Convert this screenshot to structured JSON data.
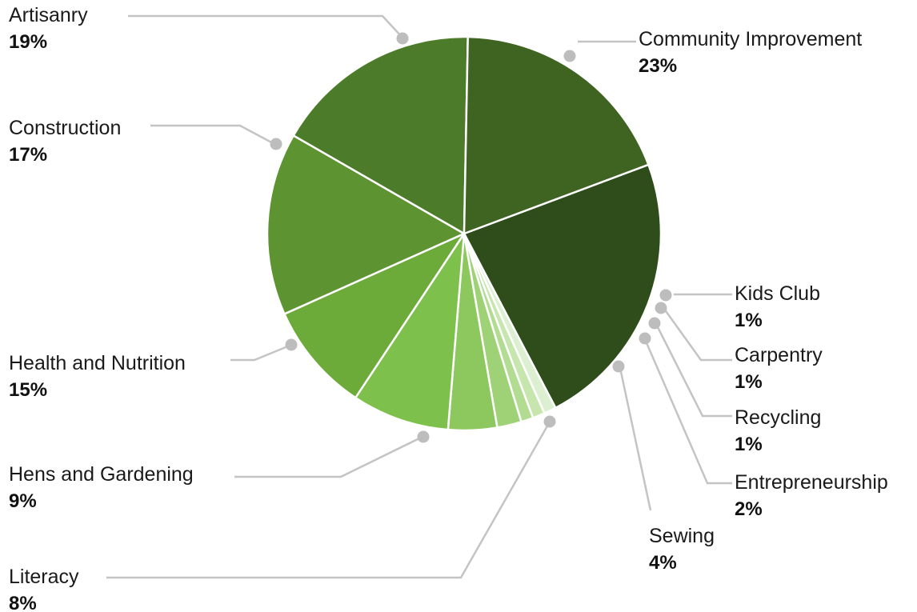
{
  "chart_data": {
    "type": "pie",
    "legend": "none",
    "slices": [
      {
        "label": "Community Improvement",
        "value": 23,
        "value_label": "23%",
        "color": "#2e4d1a"
      },
      {
        "label": "Kids Club",
        "value": 1,
        "value_label": "1%",
        "color": "#dcefd0"
      },
      {
        "label": "Carpentry",
        "value": 1,
        "value_label": "1%",
        "color": "#c6e6ae"
      },
      {
        "label": "Recycling",
        "value": 1,
        "value_label": "1%",
        "color": "#b2dc92"
      },
      {
        "label": "Entrepreneurship",
        "value": 2,
        "value_label": "2%",
        "color": "#9fd277"
      },
      {
        "label": "Sewing",
        "value": 4,
        "value_label": "4%",
        "color": "#8cc85e"
      },
      {
        "label": "Literacy",
        "value": 8,
        "value_label": "8%",
        "color": "#7dc04b"
      },
      {
        "label": "Hens and Gardening",
        "value": 9,
        "value_label": "9%",
        "color": "#6caa3a"
      },
      {
        "label": "Health and Nutrition",
        "value": 15,
        "value_label": "15%",
        "color": "#5d9431"
      },
      {
        "label": "Construction",
        "value": 17,
        "value_label": "17%",
        "color": "#4c7c29"
      },
      {
        "label": "Artisanry",
        "value": 19,
        "value_label": "19%",
        "color": "#3f6421"
      }
    ]
  }
}
